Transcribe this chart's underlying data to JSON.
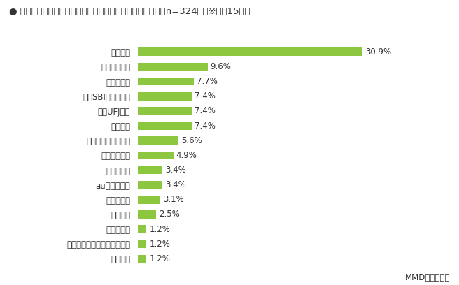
{
  "title": "● メイン利用の経験があるネット銀行・ネットバンキング（n=324）　※上位15項目",
  "categories": [
    "信用金庫",
    "埼玉りそな銀行、りそな銀行",
    "セブン銀行",
    "新生銀行",
    "イオン銀行",
    "auじぶん銀行",
    "ソニー銀行",
    "三井住友銀行",
    "ジャパンネット銀行",
    "地方銀行",
    "三菱UFJ銀行",
    "住信SBIネット銀行",
    "みずほ銀行",
    "ゆうちょ銀行",
    "楽天銀行"
  ],
  "values": [
    1.2,
    1.2,
    1.2,
    2.5,
    3.1,
    3.4,
    3.4,
    4.9,
    5.6,
    7.4,
    7.4,
    7.4,
    7.7,
    9.6,
    30.9
  ],
  "bar_color": "#8dc63f",
  "label_color": "#333333",
  "background_color": "#ffffff",
  "footer_text": "MMD研究所調べ",
  "title_fontsize": 9.5,
  "label_fontsize": 8.5,
  "value_fontsize": 8.5,
  "footer_fontsize": 8.5,
  "xlim": [
    0,
    36
  ]
}
